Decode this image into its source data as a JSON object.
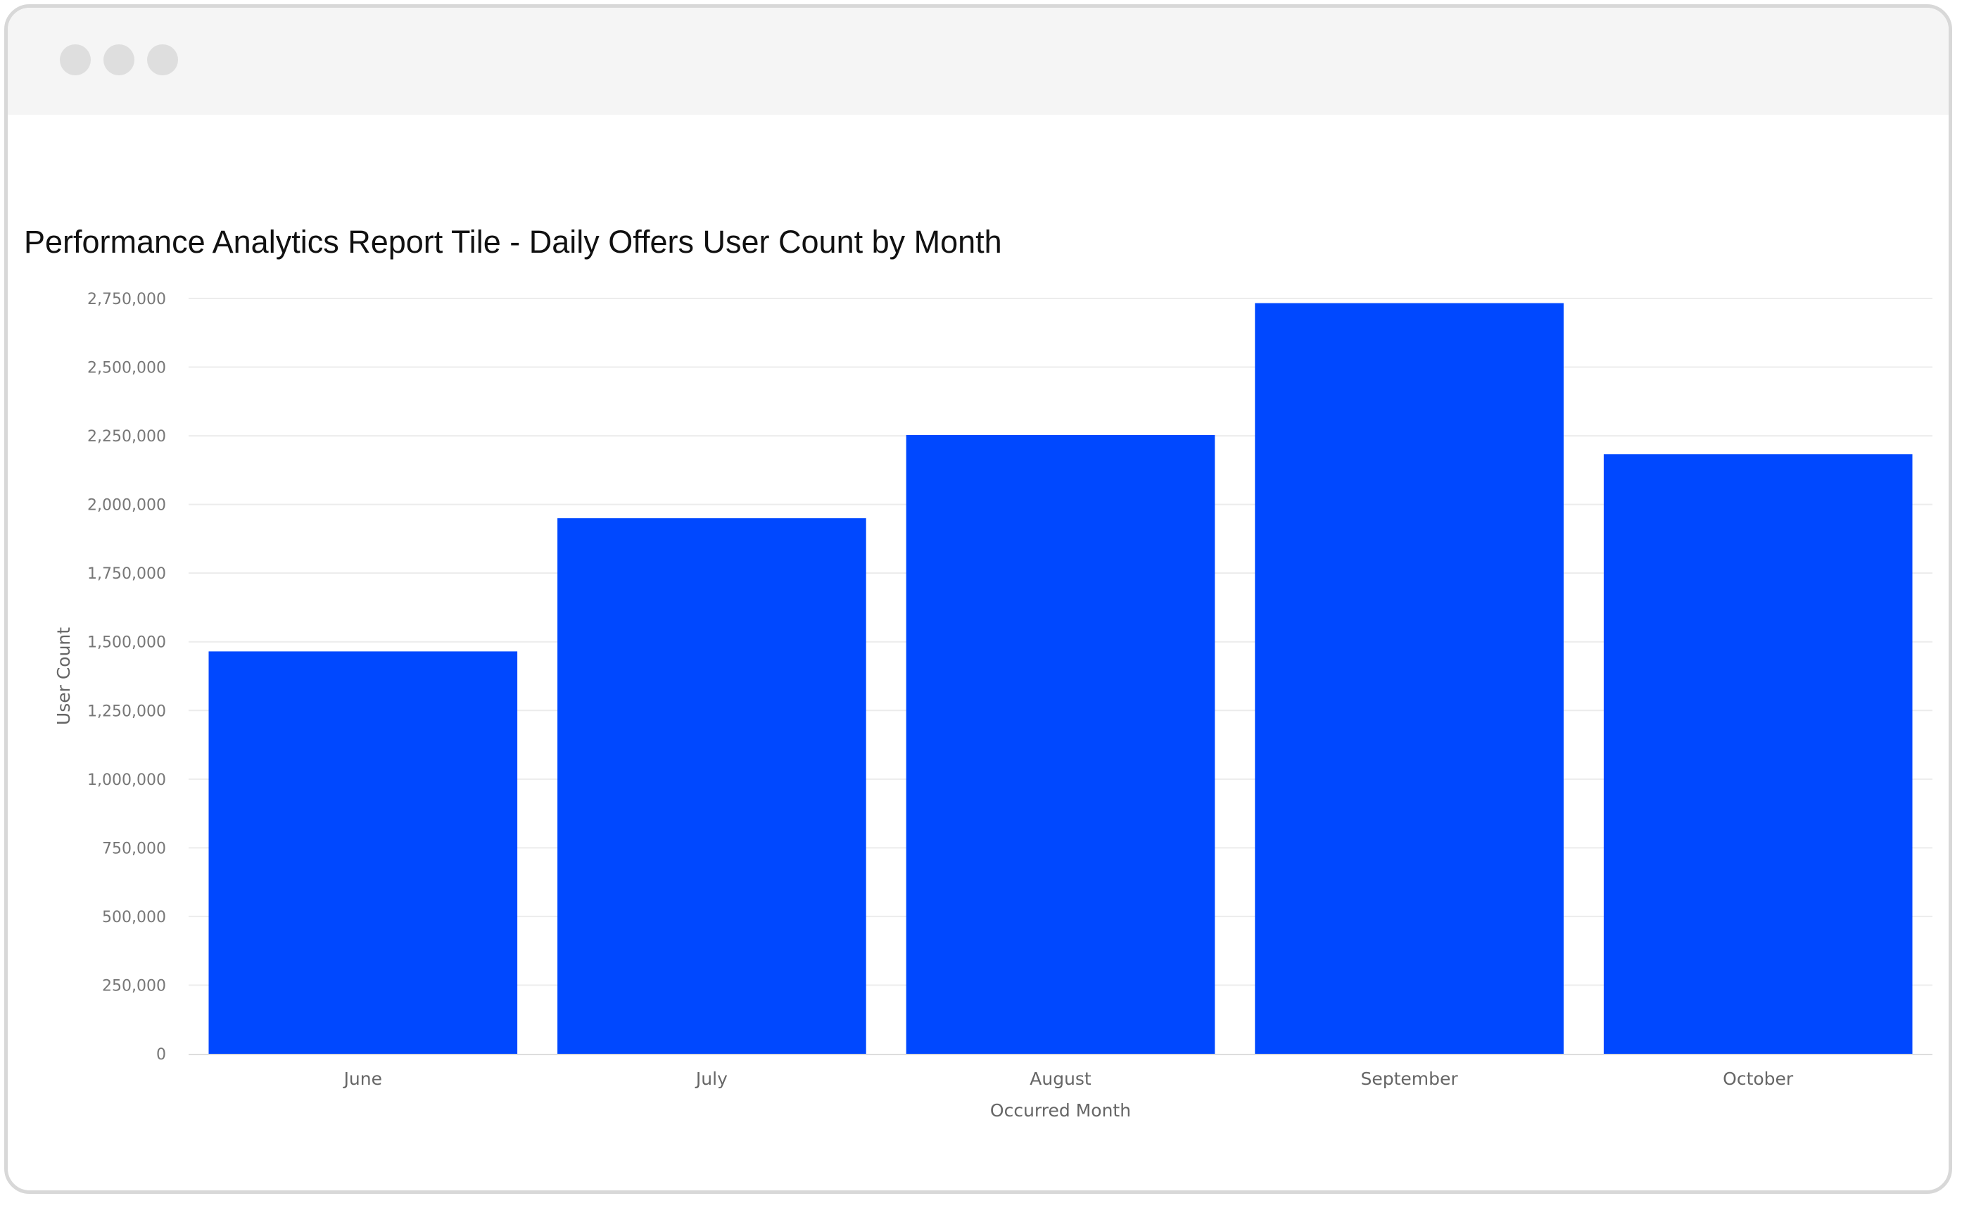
{
  "window": {
    "controls": [
      "close",
      "minimize",
      "maximize"
    ]
  },
  "chart_data": {
    "type": "bar",
    "title": "Performance Analytics Report Tile - Daily Offers User Count by Month",
    "xlabel": "Occurred Month",
    "ylabel": "User Count",
    "categories": [
      "June",
      "July",
      "August",
      "September",
      "October"
    ],
    "values": [
      1465000,
      1950000,
      2253000,
      2733000,
      2183000
    ],
    "ylim": [
      0,
      2750000
    ],
    "yticks": [
      "0",
      "250,000",
      "500,000",
      "750,000",
      "1,000,000",
      "1,250,000",
      "1,500,000",
      "1,750,000",
      "2,000,000",
      "2,250,000",
      "2,500,000",
      "2,750,000"
    ],
    "grid": true,
    "legend": "none",
    "bar_color": "#0048ff",
    "grid_color": "#ececec"
  }
}
